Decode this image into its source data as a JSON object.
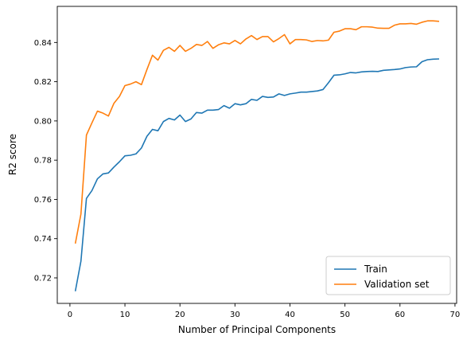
{
  "chart_data": {
    "type": "line",
    "title": "",
    "xlabel": "Number of Principal Components",
    "ylabel": "R2 score",
    "xlim": [
      -2.3,
      70.3
    ],
    "ylim": [
      0.707,
      0.8584
    ],
    "xticks": [
      0,
      10,
      20,
      30,
      40,
      50,
      60,
      70
    ],
    "yticks": [
      0.72,
      0.74,
      0.76,
      0.78,
      0.8,
      0.82,
      0.84
    ],
    "grid": false,
    "legend": "lower-right",
    "series": [
      {
        "name": "Train",
        "color": "#1f77b4",
        "x": [
          1,
          2,
          3,
          4,
          5,
          6,
          7,
          8,
          9,
          10,
          11,
          12,
          13,
          14,
          15,
          16,
          17,
          18,
          19,
          20,
          21,
          22,
          23,
          24,
          25,
          26,
          27,
          28,
          29,
          30,
          31,
          32,
          33,
          34,
          35,
          36,
          37,
          38,
          39,
          40,
          41,
          42,
          43,
          44,
          45,
          46,
          47,
          48,
          49,
          50,
          51,
          52,
          53,
          54,
          55,
          56,
          57,
          58,
          59,
          60,
          61,
          62,
          63,
          64,
          65,
          66,
          67
        ],
        "values": [
          0.7135,
          0.7285,
          0.7605,
          0.7645,
          0.7705,
          0.773,
          0.7735,
          0.7765,
          0.7792,
          0.7822,
          0.7825,
          0.7832,
          0.7862,
          0.7922,
          0.7957,
          0.795,
          0.7997,
          0.8013,
          0.8005,
          0.803,
          0.7997,
          0.801,
          0.8043,
          0.804,
          0.8055,
          0.8055,
          0.8058,
          0.8078,
          0.8065,
          0.8088,
          0.8082,
          0.8088,
          0.811,
          0.8105,
          0.8125,
          0.812,
          0.8122,
          0.8138,
          0.813,
          0.8138,
          0.8142,
          0.8147,
          0.8147,
          0.815,
          0.8153,
          0.816,
          0.8195,
          0.8233,
          0.8235,
          0.824,
          0.8247,
          0.8245,
          0.825,
          0.8252,
          0.8253,
          0.8252,
          0.8258,
          0.826,
          0.8262,
          0.8265,
          0.8272,
          0.8275,
          0.8276,
          0.8302,
          0.8312,
          0.8315,
          0.8316
        ]
      },
      {
        "name": "Validation set",
        "color": "#ff7f0e",
        "x": [
          1,
          2,
          3,
          4,
          5,
          6,
          7,
          8,
          9,
          10,
          11,
          12,
          13,
          14,
          15,
          16,
          17,
          18,
          19,
          20,
          21,
          22,
          23,
          24,
          25,
          26,
          27,
          28,
          29,
          30,
          31,
          32,
          33,
          34,
          35,
          36,
          37,
          38,
          39,
          40,
          41,
          42,
          43,
          44,
          45,
          46,
          47,
          48,
          49,
          50,
          51,
          52,
          53,
          54,
          55,
          56,
          57,
          58,
          59,
          60,
          61,
          62,
          63,
          64,
          65,
          66,
          67
        ],
        "values": [
          0.7378,
          0.7525,
          0.7928,
          0.799,
          0.805,
          0.804,
          0.8025,
          0.809,
          0.8125,
          0.818,
          0.8188,
          0.82,
          0.8185,
          0.8262,
          0.8335,
          0.831,
          0.836,
          0.8375,
          0.8355,
          0.8385,
          0.8355,
          0.837,
          0.839,
          0.8385,
          0.8405,
          0.837,
          0.8388,
          0.8398,
          0.8393,
          0.841,
          0.8393,
          0.8418,
          0.8435,
          0.8415,
          0.843,
          0.843,
          0.8403,
          0.842,
          0.844,
          0.8393,
          0.8415,
          0.8415,
          0.8413,
          0.8405,
          0.841,
          0.8408,
          0.8412,
          0.8452,
          0.8458,
          0.847,
          0.847,
          0.8465,
          0.848,
          0.848,
          0.8478,
          0.8473,
          0.8472,
          0.8472,
          0.8488,
          0.8495,
          0.8495,
          0.8497,
          0.8493,
          0.8503,
          0.851,
          0.851,
          0.8508
        ]
      }
    ]
  }
}
